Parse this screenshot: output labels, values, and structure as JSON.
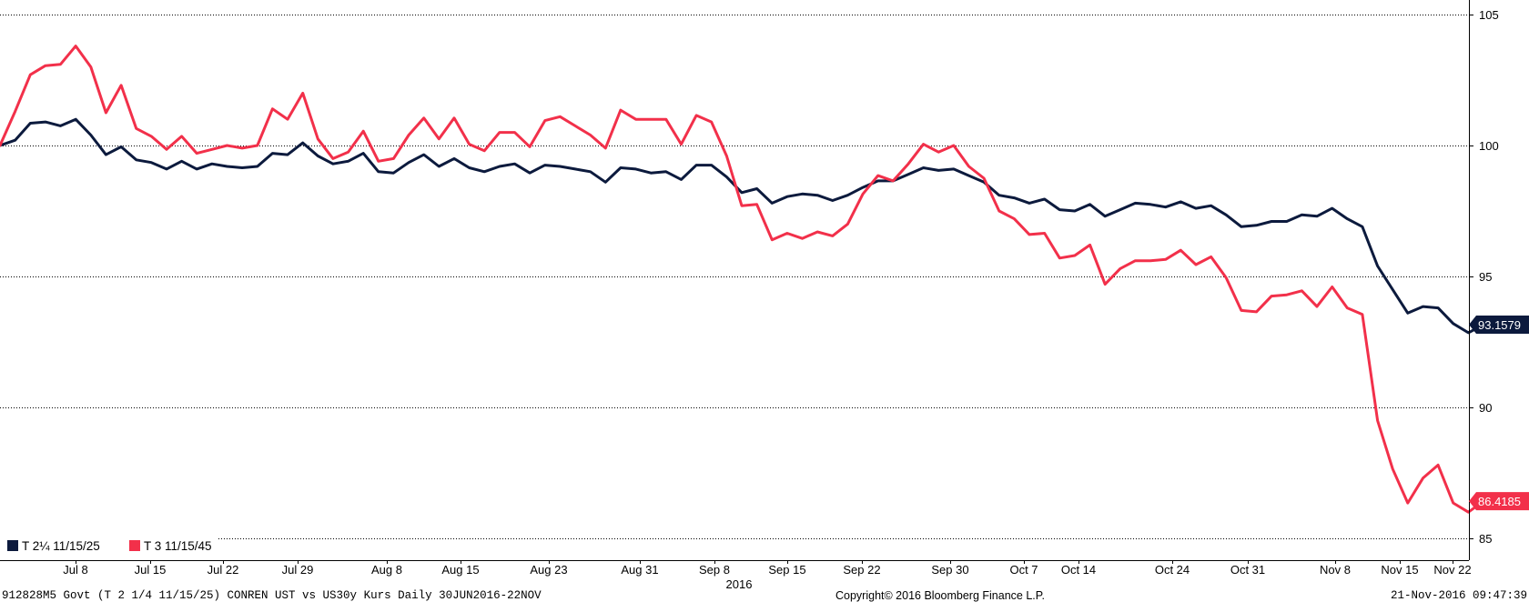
{
  "chart_data": {
    "type": "line",
    "ylim": [
      84.3,
      105.6
    ],
    "y_ticks": [
      "85",
      "90",
      "95",
      "100",
      "105"
    ],
    "x_tick_labels": [
      "Jul 8",
      "Jul 15",
      "Jul 22",
      "Jul 29",
      "Aug 8",
      "Aug 15",
      "Aug 23",
      "Aug 31",
      "Sep 8",
      "Sep 15",
      "Sep 22",
      "Sep 30",
      "Oct 7",
      "Oct 14",
      "Oct 24",
      "Oct 31",
      "Nov 8",
      "Nov 15",
      "Nov 22"
    ],
    "year_label": "2016",
    "grid": "dotted horizontal",
    "legend_position": "bottom-left",
    "series": [
      {
        "name": "T 2¼ 11/15/25",
        "color": "#0c1a3d",
        "last_value_label": "93.1579",
        "values": [
          100.0,
          100.2,
          100.85,
          100.9,
          100.75,
          101.0,
          100.4,
          99.65,
          99.95,
          99.45,
          99.35,
          99.1,
          99.4,
          99.1,
          99.3,
          99.2,
          99.15,
          99.2,
          99.7,
          99.65,
          100.1,
          99.6,
          99.3,
          99.4,
          99.7,
          99.0,
          98.95,
          99.35,
          99.65,
          99.2,
          99.5,
          99.15,
          99.0,
          99.2,
          99.3,
          98.95,
          99.25,
          99.2,
          99.1,
          99.0,
          98.6,
          99.15,
          99.1,
          98.95,
          99.0,
          98.7,
          99.25,
          99.25,
          98.8,
          98.2,
          98.35,
          97.8,
          98.05,
          98.15,
          98.1,
          97.9,
          98.1,
          98.4,
          98.65,
          98.65,
          98.9,
          99.15,
          99.05,
          99.1,
          98.85,
          98.6,
          98.1,
          98.0,
          97.8,
          97.95,
          97.55,
          97.5,
          97.75,
          97.3,
          97.55,
          97.8,
          97.75,
          97.65,
          97.85,
          97.6,
          97.7,
          97.35,
          96.9,
          96.95,
          97.1,
          97.1,
          97.35,
          97.3,
          97.6,
          97.2,
          96.9,
          95.4,
          94.5,
          93.6,
          93.85,
          93.8,
          93.2,
          92.85,
          93.16
        ]
      },
      {
        "name": "T 3 11/15/45",
        "color": "#f2304a",
        "last_value_label": "86.4185",
        "values": [
          100.0,
          101.3,
          102.7,
          103.05,
          103.1,
          103.8,
          103.0,
          101.25,
          102.3,
          100.65,
          100.35,
          99.85,
          100.35,
          99.7,
          99.85,
          100.0,
          99.9,
          100.0,
          101.4,
          101.0,
          102.0,
          100.25,
          99.5,
          99.75,
          100.55,
          99.4,
          99.5,
          100.4,
          101.05,
          100.25,
          101.05,
          100.05,
          99.8,
          100.5,
          100.5,
          99.95,
          100.95,
          101.1,
          100.75,
          100.4,
          99.9,
          101.35,
          101.0,
          101.0,
          101.0,
          100.05,
          101.15,
          100.9,
          99.6,
          97.7,
          97.75,
          96.4,
          96.65,
          96.45,
          96.7,
          96.55,
          97.0,
          98.15,
          98.85,
          98.65,
          99.3,
          100.05,
          99.75,
          100.0,
          99.2,
          98.75,
          97.5,
          97.2,
          96.6,
          96.65,
          95.7,
          95.8,
          96.2,
          94.7,
          95.3,
          95.6,
          95.6,
          95.65,
          96.0,
          95.45,
          95.75,
          94.95,
          93.7,
          93.65,
          94.25,
          94.3,
          94.45,
          93.85,
          94.6,
          93.8,
          93.55,
          89.5,
          87.65,
          86.35,
          87.3,
          87.8,
          86.35,
          86.0,
          86.42
        ]
      }
    ]
  },
  "footer": {
    "left": "912828M5 Govt (T 2 1/4 11/15/25) CONREN UST vs US30y Kurs  Daily 30JUN2016-22NOV",
    "center": "Copyright© 2016 Bloomberg Finance L.P.",
    "right": "21-Nov-2016 09:47:39"
  }
}
